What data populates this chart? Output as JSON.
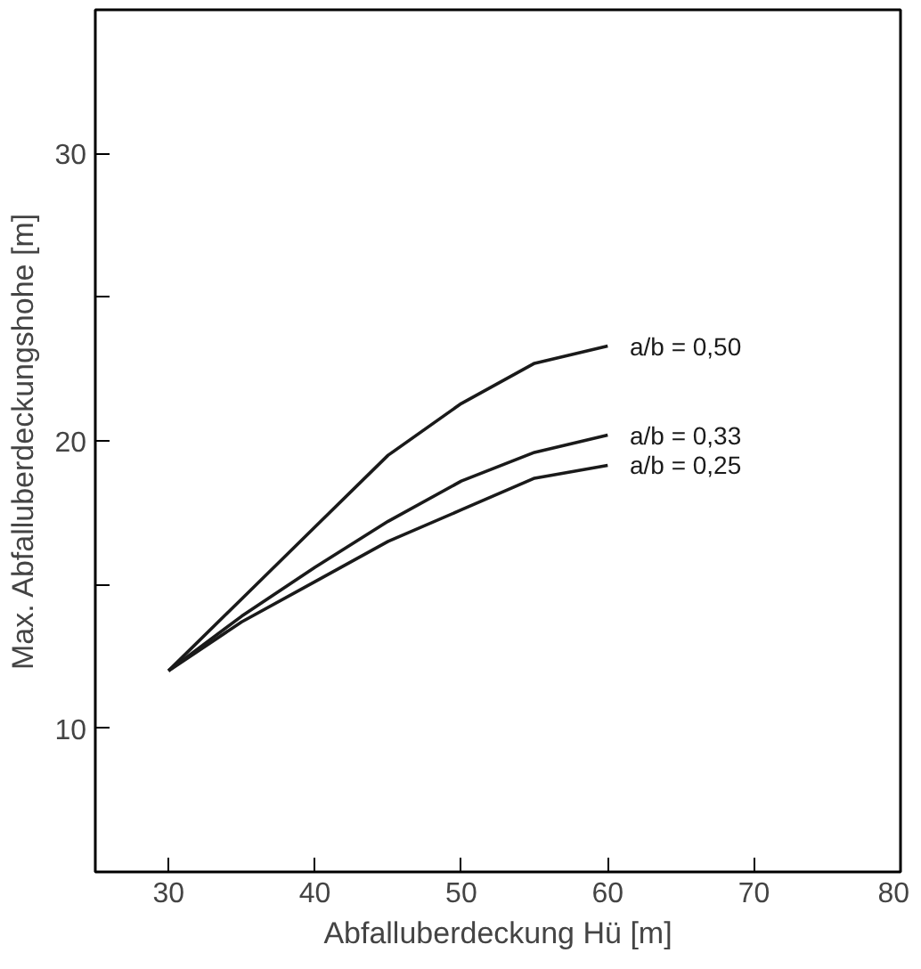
{
  "chart_data": {
    "type": "line",
    "xlabel": "Abfalluberdeckung Hü [m]",
    "ylabel": "Max. Abfalluberdeckungshohe [m]",
    "x": [
      30,
      35,
      40,
      45,
      50,
      55,
      60
    ],
    "series": [
      {
        "name": "a/b = 0,50",
        "color": "#1a1a1a",
        "values": [
          12,
          14.5,
          17,
          19.5,
          21.3,
          22.7,
          23.3
        ]
      },
      {
        "name": "a/b = 0,33",
        "color": "#1a1a1a",
        "values": [
          12,
          13.9,
          15.6,
          17.2,
          18.6,
          19.6,
          20.2
        ]
      },
      {
        "name": "a/b = 0,25",
        "color": "#1a1a1a",
        "values": [
          12,
          13.7,
          15.1,
          16.5,
          17.6,
          18.7,
          19.15
        ]
      }
    ],
    "xlim": [
      25,
      80
    ],
    "xticks": [
      30,
      40,
      50,
      60,
      70,
      80
    ],
    "ylim": [
      5,
      35
    ],
    "yticks": [
      10,
      {
        "value": 15,
        "label": null
      },
      20,
      {
        "value": 25,
        "label": null
      },
      30
    ],
    "grid": false,
    "legend": false,
    "marker": "none",
    "line_style": "solid"
  }
}
